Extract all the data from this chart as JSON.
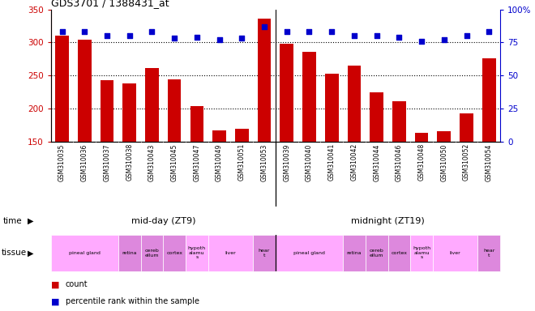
{
  "title": "GDS3701 / 1388431_at",
  "samples": [
    "GSM310035",
    "GSM310036",
    "GSM310037",
    "GSM310038",
    "GSM310043",
    "GSM310045",
    "GSM310047",
    "GSM310049",
    "GSM310051",
    "GSM310053",
    "GSM310039",
    "GSM310040",
    "GSM310041",
    "GSM310042",
    "GSM310044",
    "GSM310046",
    "GSM310048",
    "GSM310050",
    "GSM310052",
    "GSM310054"
  ],
  "counts": [
    310,
    304,
    243,
    238,
    261,
    244,
    204,
    167,
    169,
    336,
    298,
    286,
    253,
    265,
    224,
    211,
    163,
    165,
    193,
    276
  ],
  "percentiles": [
    83,
    83,
    80,
    80,
    83,
    78,
    79,
    77,
    78,
    87,
    83,
    83,
    83,
    80,
    80,
    79,
    76,
    77,
    80,
    83
  ],
  "ylim_left": [
    150,
    350
  ],
  "ylim_right": [
    0,
    100
  ],
  "yticks_left": [
    150,
    200,
    250,
    300,
    350
  ],
  "yticks_right": [
    0,
    25,
    50,
    75,
    100
  ],
  "bar_color": "#cc0000",
  "dot_color": "#0000cc",
  "label_bg": "#d0d0d0",
  "time_color": "#66ee66",
  "tissue_light": "#ffaaff",
  "tissue_dark": "#dd88dd",
  "tissue_groups": [
    {
      "label": "pineal gland",
      "start": 0,
      "end": 2,
      "color": "light"
    },
    {
      "label": "retina",
      "start": 3,
      "end": 3,
      "color": "dark"
    },
    {
      "label": "cereb\nellum",
      "start": 4,
      "end": 4,
      "color": "dark"
    },
    {
      "label": "cortex",
      "start": 5,
      "end": 5,
      "color": "dark"
    },
    {
      "label": "hypoth\nalamu\ns",
      "start": 6,
      "end": 6,
      "color": "light"
    },
    {
      "label": "liver",
      "start": 7,
      "end": 8,
      "color": "light"
    },
    {
      "label": "hear\nt",
      "start": 9,
      "end": 9,
      "color": "dark"
    },
    {
      "label": "pineal gland",
      "start": 10,
      "end": 12,
      "color": "light"
    },
    {
      "label": "retina",
      "start": 13,
      "end": 13,
      "color": "dark"
    },
    {
      "label": "cereb\nellum",
      "start": 14,
      "end": 14,
      "color": "dark"
    },
    {
      "label": "cortex",
      "start": 15,
      "end": 15,
      "color": "dark"
    },
    {
      "label": "hypoth\nalamu\ns",
      "start": 16,
      "end": 16,
      "color": "light"
    },
    {
      "label": "liver",
      "start": 17,
      "end": 18,
      "color": "light"
    },
    {
      "label": "hear\nt",
      "start": 19,
      "end": 19,
      "color": "dark"
    }
  ]
}
